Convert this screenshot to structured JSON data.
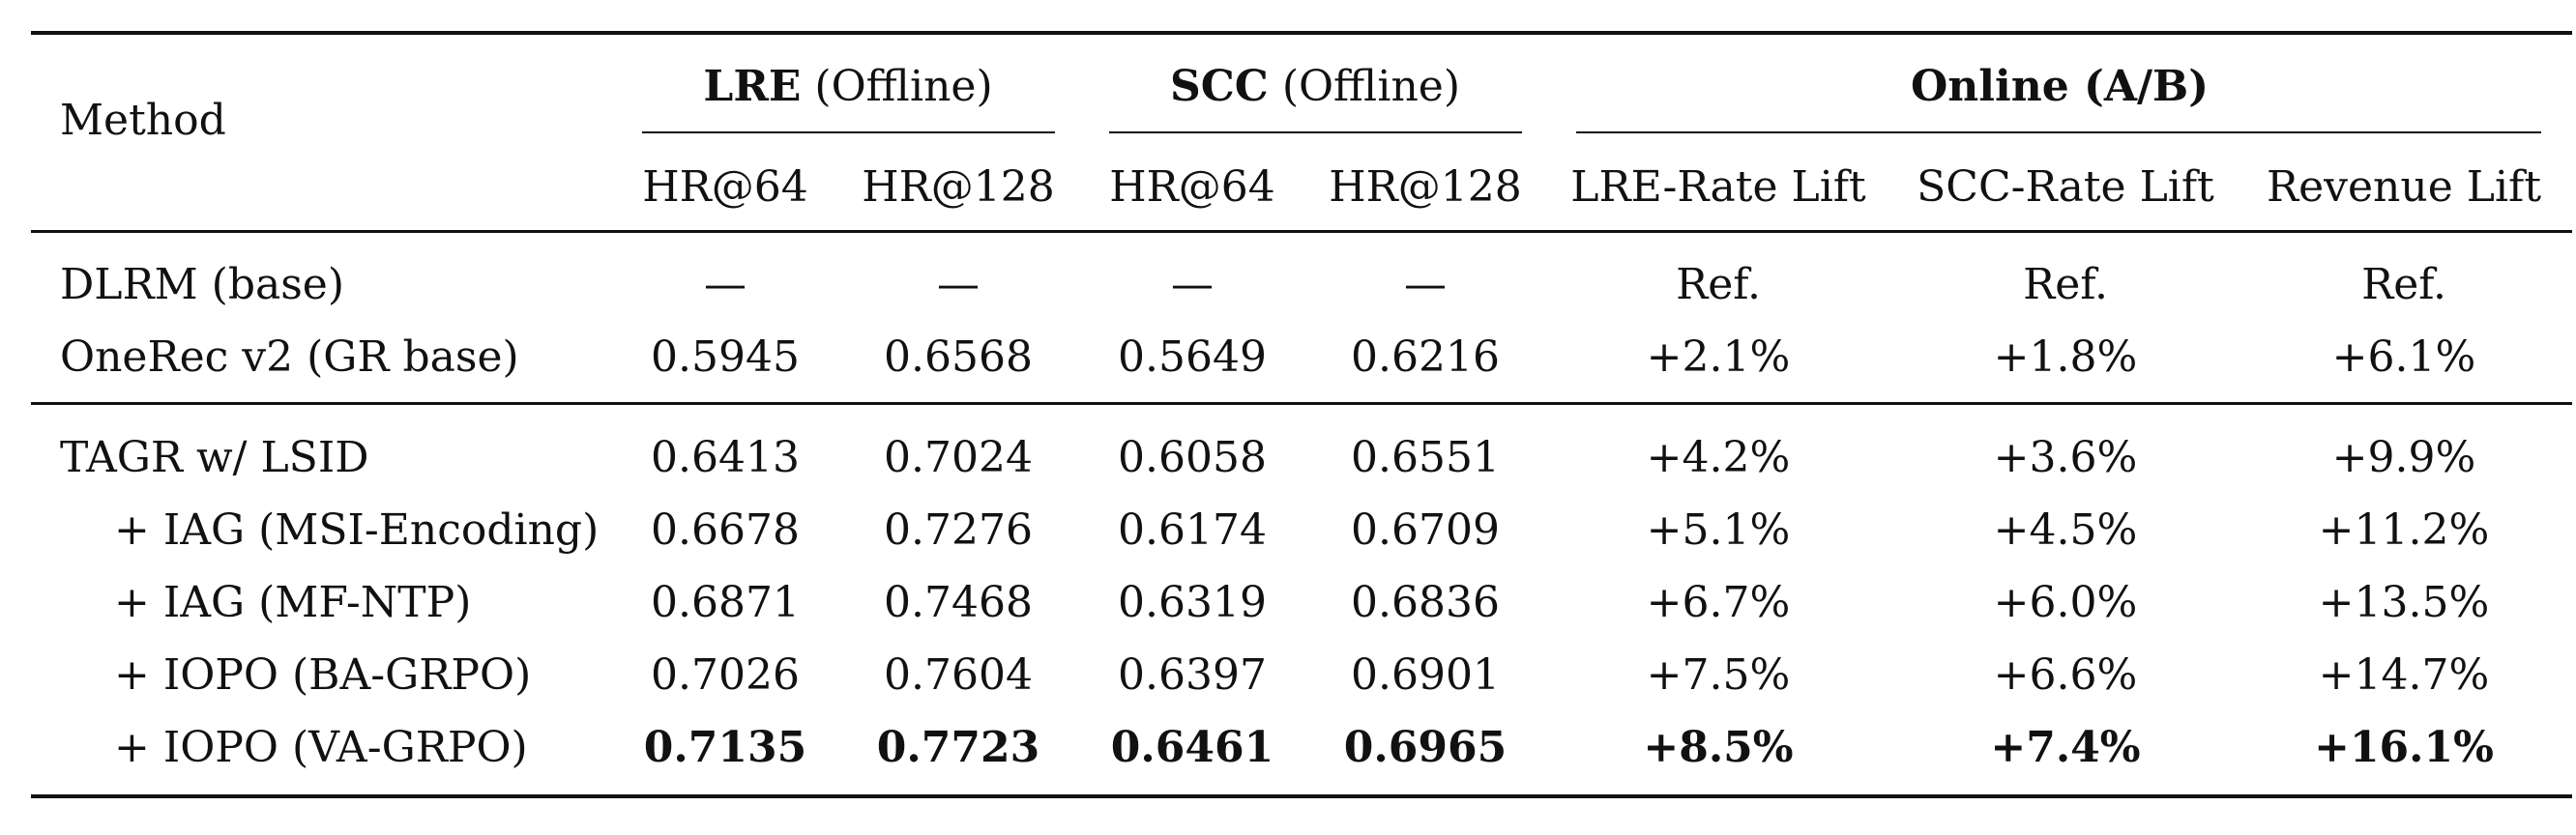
{
  "table": {
    "header": {
      "method": "Method",
      "groups": [
        {
          "bold": "LRE",
          "rest": " (Offline)"
        },
        {
          "bold": "SCC",
          "rest": " (Offline)"
        },
        {
          "bold": "Online (A/B)",
          "rest": ""
        }
      ],
      "columns": [
        "HR@64",
        "HR@128",
        "HR@64",
        "HR@128",
        "LRE-Rate Lift",
        "SCC-Rate Lift",
        "Revenue Lift"
      ]
    },
    "rows": [
      {
        "method": "DLRM (base)",
        "indent": false,
        "bold": false,
        "values": [
          "—",
          "—",
          "—",
          "—",
          "Ref.",
          "Ref.",
          "Ref."
        ]
      },
      {
        "method": "OneRec v2 (GR base)",
        "indent": false,
        "bold": false,
        "values": [
          "0.5945",
          "0.6568",
          "0.5649",
          "0.6216",
          "+2.1%",
          "+1.8%",
          "+6.1%"
        ]
      },
      {
        "method": "TAGR w/ LSID",
        "indent": false,
        "bold": false,
        "values": [
          "0.6413",
          "0.7024",
          "0.6058",
          "0.6551",
          "+4.2%",
          "+3.6%",
          "+9.9%"
        ]
      },
      {
        "method": "+ IAG (MSI-Encoding)",
        "indent": true,
        "bold": false,
        "values": [
          "0.6678",
          "0.7276",
          "0.6174",
          "0.6709",
          "+5.1%",
          "+4.5%",
          "+11.2%"
        ]
      },
      {
        "method": "+ IAG (MF-NTP)",
        "indent": true,
        "bold": false,
        "values": [
          "0.6871",
          "0.7468",
          "0.6319",
          "0.6836",
          "+6.7%",
          "+6.0%",
          "+13.5%"
        ]
      },
      {
        "method": "+ IOPO (BA-GRPO)",
        "indent": true,
        "bold": false,
        "values": [
          "0.7026",
          "0.7604",
          "0.6397",
          "0.6901",
          "+7.5%",
          "+6.6%",
          "+14.7%"
        ]
      },
      {
        "method": "+ IOPO (VA-GRPO)",
        "indent": true,
        "bold": true,
        "values": [
          "0.7135",
          "0.7723",
          "0.6461",
          "0.6965",
          "+8.5%",
          "+7.4%",
          "+16.1%"
        ]
      }
    ]
  }
}
